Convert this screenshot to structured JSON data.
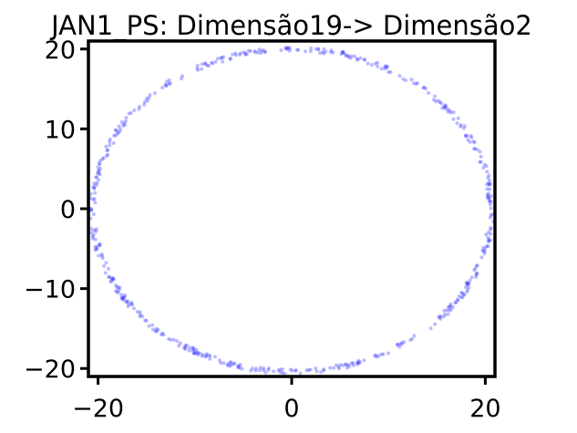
{
  "chart_data": {
    "type": "scatter",
    "title": "JAN1_PS: Dimensão19-> Dimensão2",
    "xlabel": "",
    "ylabel": "",
    "xlim": [
      -21,
      21
    ],
    "ylim": [
      -21,
      21
    ],
    "x_ticks": [
      {
        "value": -20,
        "label": "−20"
      },
      {
        "value": 0,
        "label": "0"
      },
      {
        "value": 20,
        "label": "20"
      }
    ],
    "y_ticks": [
      {
        "value": 20,
        "label": "20"
      },
      {
        "value": 10,
        "label": "10"
      },
      {
        "value": 0,
        "label": "0"
      },
      {
        "value": -10,
        "label": "−10"
      },
      {
        "value": -20,
        "label": "−20"
      }
    ],
    "grid": false,
    "legend": "none",
    "point_color": "#3b3bff",
    "point_opacity": 0.35,
    "shape": "ellipse",
    "center": [
      0,
      -0.2
    ],
    "radius_x": 20.6,
    "radius_y": 20.2,
    "n_points": 520
  }
}
